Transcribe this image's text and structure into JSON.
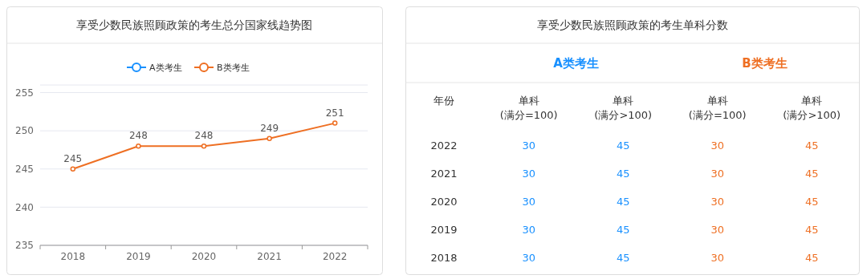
{
  "chart_data": [
    {
      "type": "line",
      "title": "享受少数民族照顾政策的考生总分国家线趋势图",
      "categories": [
        "2018",
        "2019",
        "2020",
        "2021",
        "2022"
      ],
      "series": [
        {
          "name": "A类考生",
          "color": "#1890ff",
          "values": [
            null,
            null,
            null,
            null,
            null
          ]
        },
        {
          "name": "B类考生",
          "color": "#ee6f23",
          "values": [
            245,
            248,
            248,
            249,
            251
          ]
        }
      ],
      "ylim": [
        235,
        256
      ],
      "yticks": [
        235,
        240,
        245,
        250,
        255
      ],
      "grid": "y",
      "legend": "top",
      "marker": "circle",
      "data_labels": true
    },
    {
      "type": "heatmap",
      "title": "享受少数民族照顾政策的考生单科分数",
      "ylabel": "年份",
      "annotations": [
        "A类考生",
        "B类考生"
      ],
      "colors": [
        "#1890ff",
        "#1890ff",
        "#ee6f23",
        "#ee6f23"
      ],
      "data_labels": true,
      "categories": [
        "单科\n(满分=100)",
        "单科\n(满分>100)",
        "单科\n(满分=100)",
        "单科\n(满分>100)"
      ],
      "y_categories": [
        "2022",
        "2021",
        "2020",
        "2019",
        "2018"
      ],
      "cells": [
        [
          30,
          45,
          30,
          45
        ],
        [
          30,
          45,
          30,
          45
        ],
        [
          30,
          45,
          30,
          45
        ],
        [
          30,
          45,
          30,
          45
        ],
        [
          30,
          45,
          30,
          45
        ]
      ]
    }
  ]
}
